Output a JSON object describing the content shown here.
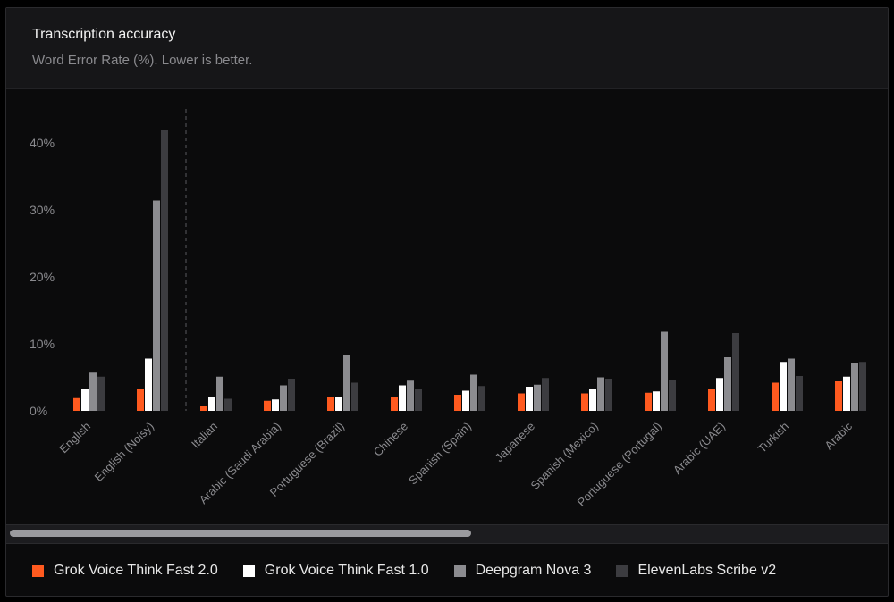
{
  "header": {
    "title": "Transcription accuracy",
    "subtitle": "Word Error Rate (%). Lower is better."
  },
  "legend": {
    "items": [
      {
        "label": "Grok Voice Think Fast 2.0",
        "color": "#ff5a1f"
      },
      {
        "label": "Grok Voice Think Fast 1.0",
        "color": "#ffffff"
      },
      {
        "label": "Deepgram Nova 3",
        "color": "#8c8c90"
      },
      {
        "label": "ElevenLabs Scribe v2",
        "color": "#3c3c40"
      }
    ]
  },
  "chart_data": {
    "type": "bar",
    "title": "Transcription accuracy",
    "subtitle": "Word Error Rate (%). Lower is better.",
    "categories": [
      "English",
      "English (Noisy)",
      "Italian",
      "Arabic (Saudi Arabia)",
      "Portuguese (Brazil)",
      "Chinese",
      "Spanish (Spain)",
      "Japanese",
      "Spanish (Mexico)",
      "Portuguese (Portugal)",
      "Arabic (UAE)",
      "Turkish",
      "Arabic"
    ],
    "yticks": [
      "0%",
      "10%",
      "20%",
      "30%",
      "40%"
    ],
    "ylim": [
      0,
      45
    ],
    "grid": false,
    "legend_position": "bottom",
    "series": [
      {
        "name": "Grok Voice Think Fast 2.0",
        "color": "#ff5a1f",
        "values": [
          1.9,
          3.2,
          0.7,
          1.5,
          2.1,
          2.1,
          2.4,
          2.6,
          2.6,
          2.7,
          3.2,
          4.2,
          4.4
        ]
      },
      {
        "name": "Grok Voice Think Fast 1.0",
        "color": "#ffffff",
        "values": [
          3.3,
          7.8,
          2.1,
          1.7,
          2.1,
          3.8,
          3.0,
          3.6,
          3.2,
          2.9,
          4.9,
          7.3,
          5.1
        ]
      },
      {
        "name": "Deepgram Nova 3",
        "color": "#8c8c90",
        "values": [
          5.7,
          31.4,
          5.1,
          3.8,
          8.3,
          4.5,
          5.4,
          3.9,
          5.0,
          11.8,
          8.0,
          7.8,
          7.2
        ]
      },
      {
        "name": "ElevenLabs Scribe v2",
        "color": "#3c3c40",
        "values": [
          5.1,
          42.0,
          1.8,
          4.8,
          4.2,
          3.3,
          3.7,
          4.9,
          4.8,
          4.6,
          11.6,
          5.2,
          7.3
        ]
      }
    ]
  }
}
